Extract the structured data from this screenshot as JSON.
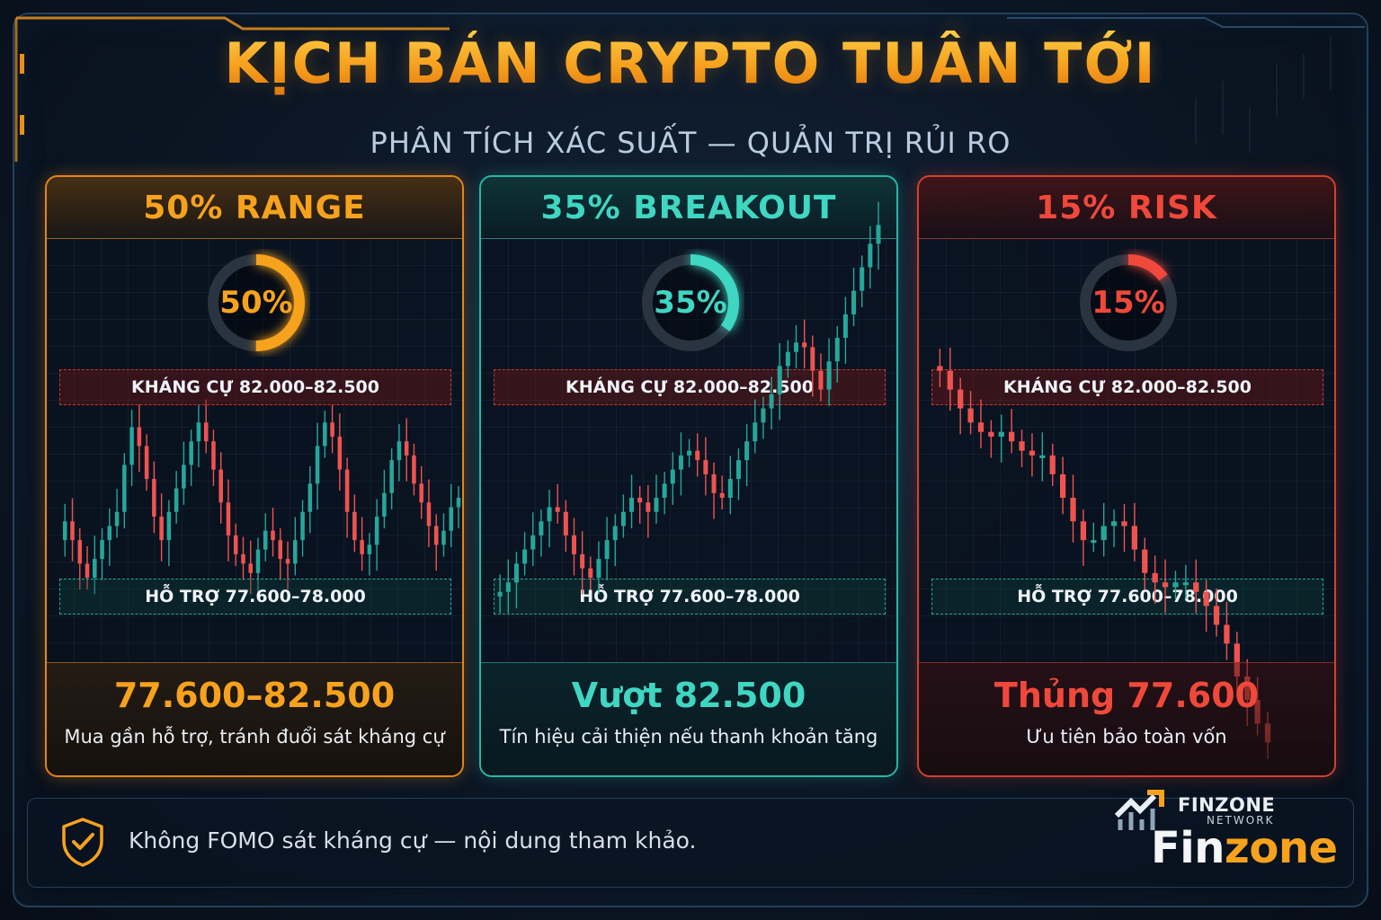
{
  "title": "KỊCH BẢN CRYPTO TUẦN TỚI",
  "subtitle": "PHÂN TÍCH XÁC SUẤT — QUẢN TRỊ RỦI RO",
  "colors": {
    "range": "#f7a21d",
    "breakout": "#3fd6c2",
    "risk": "#f0483a",
    "candle_up": "#26a69a",
    "candle_down": "#ef5350"
  },
  "scenarios": [
    {
      "id": "range",
      "header": "50% RANGE",
      "probability": 50,
      "probability_label": "50%",
      "resistance_label": "KHÁNG CỰ 82.000–82.500",
      "support_label": "HỖ TRỢ 77.600–78.000",
      "target": "77.600–82.500",
      "note": "Mua gần hỗ trợ, tránh đuổi sát kháng cự"
    },
    {
      "id": "breakout",
      "header": "35% BREAKOUT",
      "probability": 35,
      "probability_label": "35%",
      "resistance_label": "KHÁNG CỰ 82.000–82.500",
      "support_label": "HỖ TRỢ 77.600–78.000",
      "target": "Vượt 82.500",
      "note": "Tín hiệu cải thiện nếu thanh khoản tăng"
    },
    {
      "id": "risk",
      "header": "15% RISK",
      "probability": 15,
      "probability_label": "15%",
      "resistance_label": "KHÁNG CỰ 82.000–82.500",
      "support_label": "HỖ TRỢ 77.600–78.000",
      "target": "Thủng 77.600",
      "note": "Ưu tiên bảo toàn vốn"
    }
  ],
  "chart_data": {
    "type": "bar",
    "categories": [
      "50% RANGE",
      "35% BREAKOUT",
      "15% RISK"
    ],
    "values": [
      50,
      35,
      15
    ],
    "resistance_zone": [
      82000,
      82500
    ],
    "support_zone": [
      77600,
      78000
    ],
    "candle_paths": {
      "range": [
        79.0,
        79.4,
        79.0,
        78.5,
        78.2,
        78.6,
        79.0,
        79.3,
        79.6,
        80.6,
        81.4,
        81.0,
        80.3,
        79.5,
        79.0,
        79.6,
        80.1,
        80.6,
        81.1,
        81.5,
        81.1,
        80.5,
        79.8,
        79.1,
        78.7,
        78.5,
        78.3,
        78.8,
        79.2,
        79.0,
        78.6,
        78.5,
        79.0,
        79.6,
        80.2,
        81.0,
        81.5,
        81.2,
        80.5,
        79.6,
        79.0,
        78.7,
        78.9,
        79.5,
        80.0,
        80.7,
        81.1,
        80.8,
        80.2,
        79.8,
        79.3,
        78.9,
        79.2,
        79.7,
        79.9
      ],
      "breakout": [
        77.8,
        77.9,
        78.1,
        78.5,
        78.8,
        79.1,
        79.4,
        79.7,
        79.6,
        79.1,
        78.7,
        78.4,
        78.2,
        78.6,
        79.0,
        79.3,
        79.6,
        79.9,
        79.8,
        79.6,
        79.9,
        80.2,
        80.5,
        80.8,
        80.9,
        80.7,
        80.4,
        80.0,
        79.9,
        80.3,
        80.7,
        81.1,
        81.5,
        81.8,
        82.1,
        82.7,
        83.0,
        83.2,
        83.1,
        82.6,
        82.2,
        82.8,
        83.3,
        83.8,
        84.3,
        84.8,
        85.3,
        85.7
      ],
      "risk": [
        82.7,
        82.6,
        82.2,
        81.8,
        81.5,
        81.3,
        81.2,
        81.3,
        81.1,
        80.9,
        80.8,
        80.8,
        80.4,
        79.9,
        79.4,
        79.0,
        79.0,
        79.3,
        79.4,
        79.3,
        78.8,
        78.3,
        78.1,
        78.0,
        78.1,
        78.1,
        77.9,
        77.6,
        77.2,
        76.8,
        76.1,
        75.6,
        75.1,
        74.7
      ]
    }
  },
  "footer": {
    "disclaimer": "Không FOMO sát kháng cự — nội dung tham khảo.",
    "brand_small": "FINZONE",
    "brand_net": "NETWORK",
    "brand_big_1": "Fin",
    "brand_big_2": "zone",
    "shield_icon": "shield-check-icon",
    "logo_icon": "finzone-logo-icon"
  }
}
